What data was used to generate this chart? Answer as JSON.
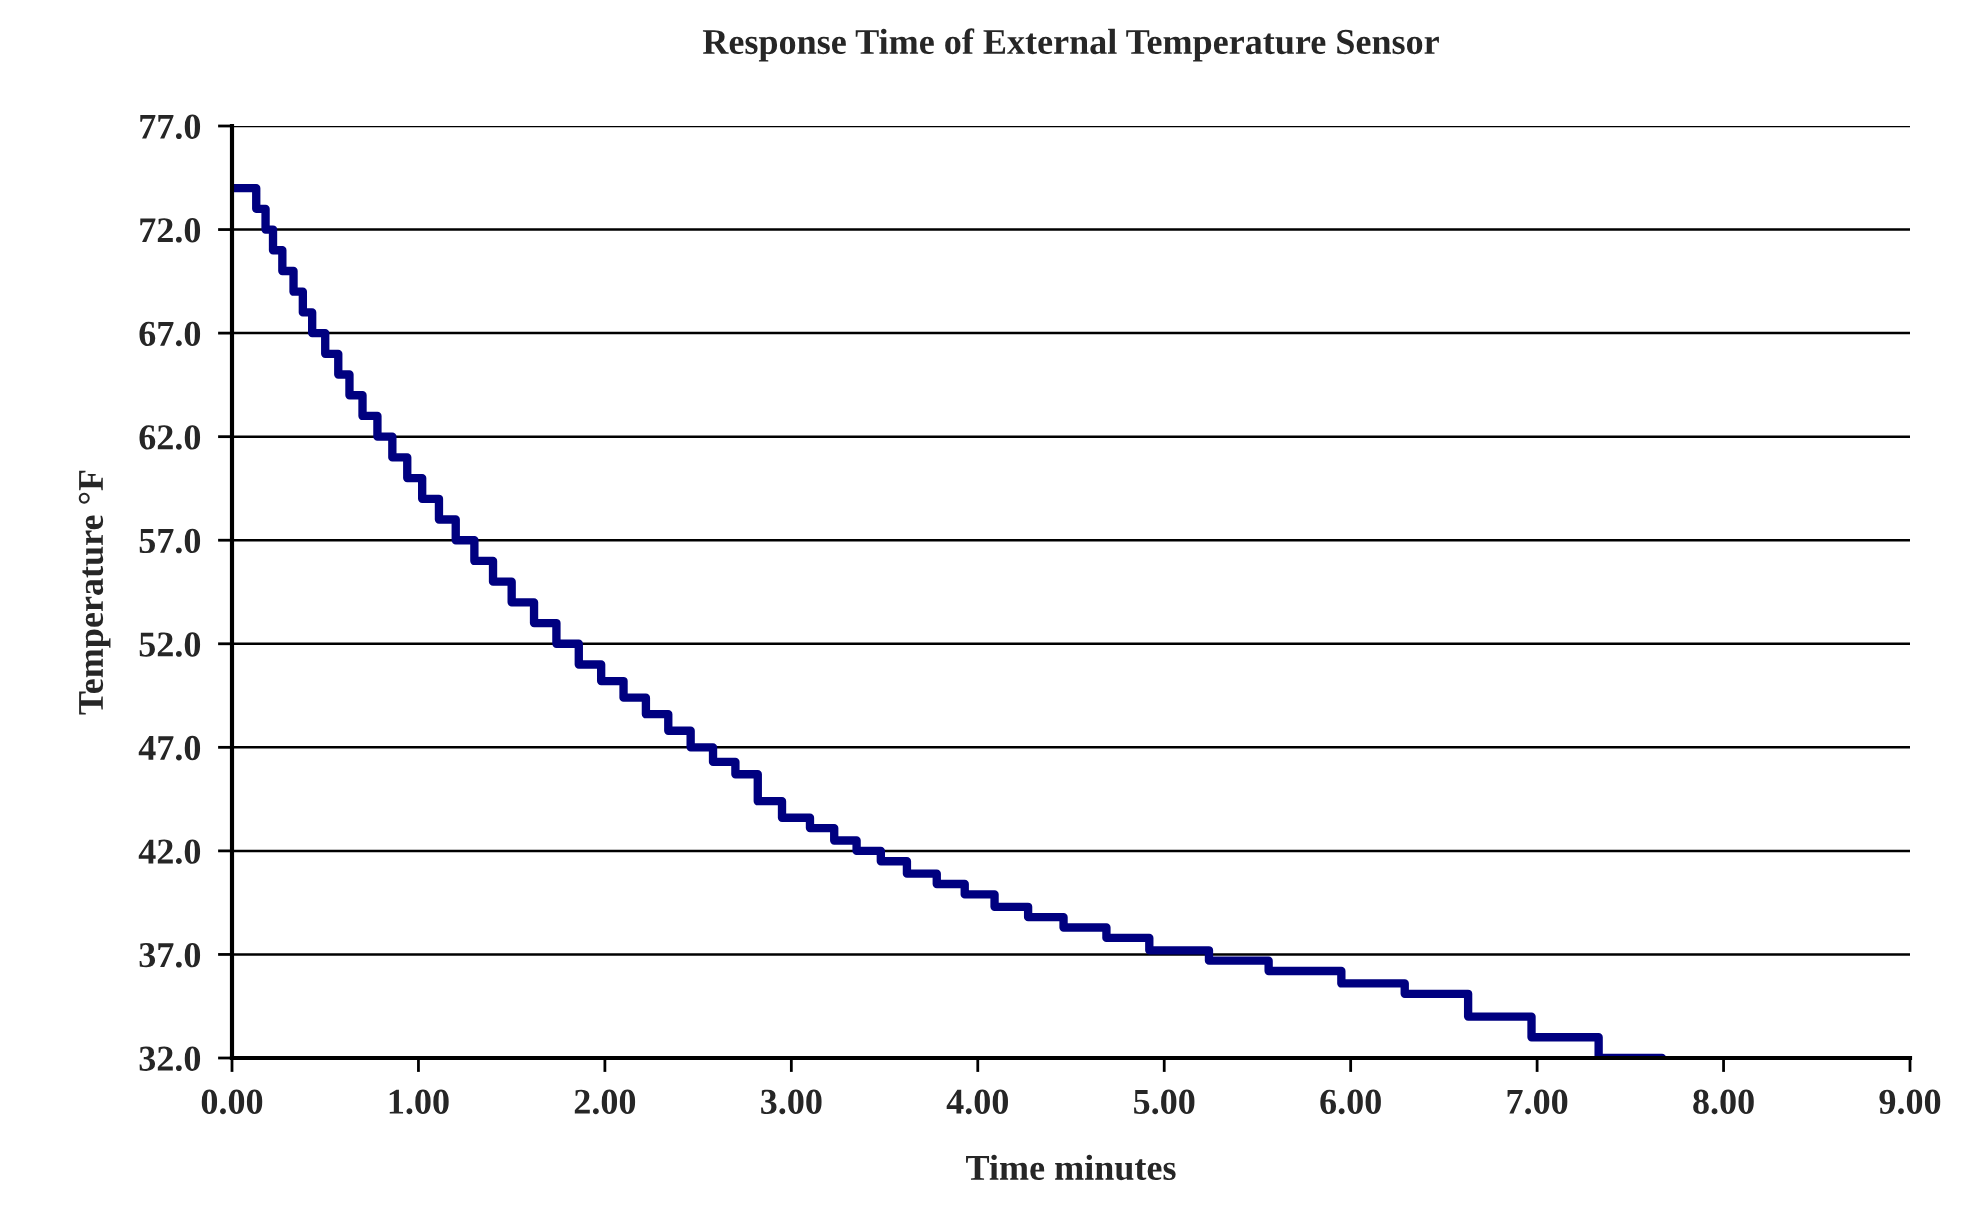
{
  "chart_data": {
    "type": "step",
    "title": "Response Time of External Temperature Sensor",
    "xlabel": "Time minutes",
    "ylabel": "Temperature °F",
    "x": [
      0,
      0.13,
      0.18,
      0.22,
      0.27,
      0.33,
      0.38,
      0.43,
      0.5,
      0.57,
      0.63,
      0.7,
      0.78,
      0.86,
      0.94,
      1.02,
      1.11,
      1.2,
      1.3,
      1.4,
      1.5,
      1.62,
      1.74,
      1.86,
      1.98,
      2.1,
      2.22,
      2.34,
      2.46,
      2.58,
      2.7,
      2.82,
      2.95,
      3.1,
      3.23,
      3.35,
      3.48,
      3.62,
      3.78,
      3.93,
      4.09,
      4.27,
      4.46,
      4.69,
      4.92,
      5.24,
      5.56,
      5.95,
      6.29,
      6.63,
      6.97,
      7.33,
      7.67
    ],
    "series": [
      {
        "color": "#000080",
        "values": [
          74.0,
          73.0,
          72.0,
          71.0,
          70.0,
          69.0,
          68.0,
          67.0,
          66.0,
          65.0,
          64.0,
          63.0,
          62.0,
          61.0,
          60.0,
          59.0,
          58.0,
          57.0,
          56.0,
          55.0,
          54.0,
          53.0,
          52.0,
          51.0,
          50.2,
          49.4,
          48.6,
          47.8,
          47.0,
          46.3,
          45.7,
          44.4,
          43.6,
          43.1,
          42.5,
          42.0,
          41.5,
          40.9,
          40.4,
          39.9,
          39.3,
          38.8,
          38.3,
          37.8,
          37.2,
          36.7,
          36.2,
          35.6,
          35.1,
          34.0,
          33.0,
          32.0,
          32.0
        ]
      }
    ],
    "xlim": [
      0,
      9
    ],
    "xticks": [
      {
        "value": 0,
        "label": "0.00"
      },
      {
        "value": 1,
        "label": "1.00"
      },
      {
        "value": 2,
        "label": "2.00"
      },
      {
        "value": 3,
        "label": "3.00"
      },
      {
        "value": 4,
        "label": "4.00"
      },
      {
        "value": 5,
        "label": "5.00"
      },
      {
        "value": 6,
        "label": "6.00"
      },
      {
        "value": 7,
        "label": "7.00"
      },
      {
        "value": 8,
        "label": "8.00"
      },
      {
        "value": 9,
        "label": "9.00"
      }
    ],
    "ylim": [
      32,
      77
    ],
    "yticks": [
      {
        "value": 32,
        "label": "32.0"
      },
      {
        "value": 37,
        "label": "37.0"
      },
      {
        "value": 42,
        "label": "42.0"
      },
      {
        "value": 47,
        "label": "47.0"
      },
      {
        "value": 52,
        "label": "52.0"
      },
      {
        "value": 57,
        "label": "57.0"
      },
      {
        "value": 62,
        "label": "62.0"
      },
      {
        "value": 67,
        "label": "67.0"
      },
      {
        "value": 72,
        "label": "72.0"
      },
      {
        "value": 77,
        "label": "77.0"
      }
    ],
    "grid": "y",
    "line_style": "solid"
  }
}
